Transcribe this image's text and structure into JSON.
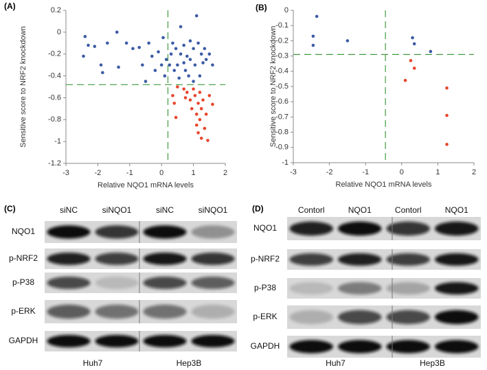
{
  "chart_data": [
    {
      "type": "scatter",
      "panel": "(A)",
      "x_label": "Relative NQO1 mRNA levels",
      "y_label": "Sensitive score to NRF2 knockdown",
      "xlim": [
        -3,
        2
      ],
      "xticks": [
        -3,
        -2,
        -1,
        0,
        1,
        2
      ],
      "ylim": [
        -1.2,
        0.2
      ],
      "yticks": [
        -1.2,
        -1,
        -0.8,
        -0.6,
        -0.4,
        -0.2,
        0,
        0.2
      ],
      "reference_lines": {
        "x": 0.2,
        "y": -0.48,
        "color": "#3f9a3f"
      },
      "series": [
        {
          "color": "#3b5ba5",
          "x": [
            -2.45,
            -2.4,
            -2.3,
            -2.1,
            -1.9,
            -1.85,
            -1.7,
            -1.4,
            -1.35,
            -1.1,
            -0.9,
            -0.7,
            -0.6,
            -0.5,
            -0.4,
            -0.3,
            -0.2,
            -0.1,
            0,
            0.05,
            0.1,
            0.15,
            0.25,
            0.3,
            0.35,
            0.4,
            0.45,
            0.5,
            0.55,
            0.6,
            0.6,
            0.7,
            0.7,
            0.75,
            0.8,
            0.85,
            0.9,
            0.9,
            1,
            1,
            1.05,
            1.1,
            1.15,
            1.2,
            1.25,
            1.3,
            1.35,
            1.4,
            1.5,
            1.6
          ],
          "values": [
            -0.22,
            -0.04,
            -0.12,
            -0.13,
            -0.3,
            -0.37,
            -0.1,
            0,
            -0.32,
            -0.1,
            -0.15,
            -0.14,
            -0.3,
            -0.45,
            -0.1,
            -0.22,
            -0.35,
            -0.18,
            -0.3,
            -0.05,
            -0.4,
            -0.25,
            -0.3,
            -0.2,
            -0.1,
            -0.35,
            -0.15,
            -0.3,
            -0.42,
            -0.2,
            0.05,
            -0.28,
            -0.12,
            -0.35,
            -0.22,
            -0.4,
            -0.08,
            -0.25,
            -0.15,
            -0.45,
            -0.3,
            0.15,
            -0.1,
            -0.4,
            -0.2,
            -0.28,
            -0.15,
            -0.25,
            -0.2,
            -0.3
          ]
        },
        {
          "color": "#e8452c",
          "x": [
            0.35,
            0.4,
            0.45,
            0.5,
            0.7,
            0.75,
            0.8,
            0.9,
            0.95,
            1.0,
            1.05,
            1.1,
            1.1,
            1.15,
            1.15,
            1.2,
            1.2,
            1.25,
            1.25,
            1.3,
            1.35,
            1.4,
            1.45,
            1.5,
            1.6
          ],
          "values": [
            -0.58,
            -0.65,
            -0.78,
            -0.5,
            -0.52,
            -0.6,
            -0.55,
            -0.62,
            -0.7,
            -0.52,
            -0.58,
            -0.75,
            -0.85,
            -0.65,
            -0.92,
            -0.55,
            -0.8,
            -0.7,
            -0.97,
            -0.62,
            -0.88,
            -0.75,
            -0.99,
            -0.58,
            -0.66
          ]
        }
      ]
    },
    {
      "type": "scatter",
      "panel": "(B)",
      "x_label": "Relative NQO1 mRNA levels",
      "y_label": "Sensitive score to NRF2 knockdown",
      "xlim": [
        -3,
        2
      ],
      "xticks": [
        -3,
        -2,
        -1,
        0,
        1,
        2
      ],
      "ylim": [
        -1,
        0
      ],
      "yticks": [
        -1,
        -0.9,
        -0.8,
        -0.7,
        -0.6,
        -0.5,
        -0.4,
        -0.3,
        -0.2,
        -0.1,
        0
      ],
      "reference_lines": {
        "x": -0.45,
        "y": -0.29,
        "color": "#3f9a3f"
      },
      "series": [
        {
          "color": "#3b5ba5",
          "x": [
            -2.35,
            -2.45,
            -2.45,
            -1.5,
            0.3,
            0.35,
            0.8
          ],
          "values": [
            -0.04,
            -0.17,
            -0.23,
            -0.2,
            -0.18,
            -0.22,
            -0.27
          ]
        },
        {
          "color": "#e8452c",
          "x": [
            0.1,
            0.25,
            0.35,
            1.25,
            1.25,
            1.25
          ],
          "values": [
            -0.46,
            -0.33,
            -0.38,
            -0.51,
            -0.69,
            -0.88
          ]
        }
      ]
    }
  ],
  "blots": [
    {
      "panel": "(C)",
      "lanes": [
        "siNC",
        "siNQO1",
        "siNC",
        "siNQO1"
      ],
      "rows": [
        "NQO1",
        "p-NRF2",
        "p-P38",
        "p-ERK",
        "GAPDH"
      ],
      "groups": [
        "Huh7",
        "Hep3B"
      ]
    },
    {
      "panel": "(D)",
      "lanes": [
        "Contorl",
        "NQO1",
        "Contorl",
        "NQO1"
      ],
      "rows": [
        "NQO1",
        "p-NRF2",
        "p-P38",
        "p-ERK",
        "GAPDH"
      ],
      "groups": [
        "Huh7",
        "Hep3B"
      ]
    }
  ]
}
